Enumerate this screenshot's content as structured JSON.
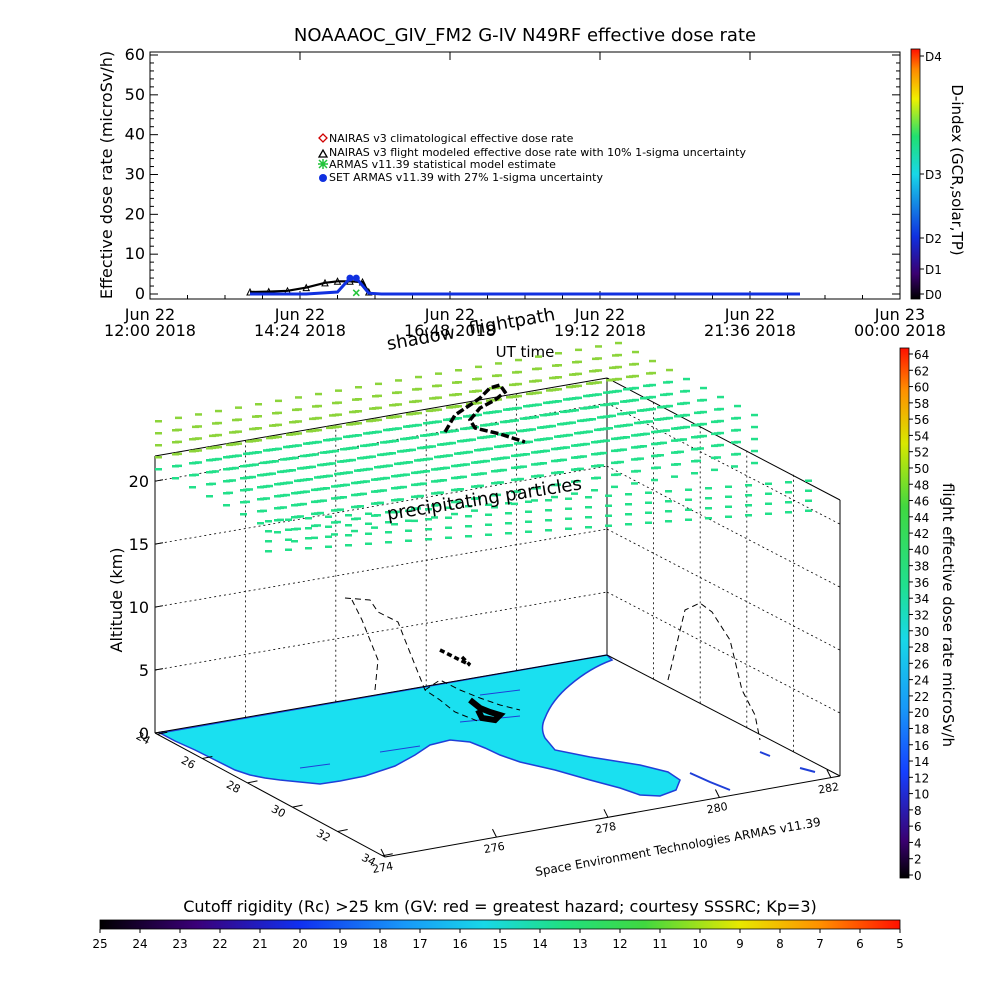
{
  "chart_data": [
    {
      "type": "line",
      "title": "NOAAAOC_GIV_FM2 G-IV   N49RF  effective dose rate",
      "ylabel": "Effective dose rate (microSv/h)",
      "xlabel": "UT time",
      "ylim": [
        0,
        60
      ],
      "y_ticks": [
        "0",
        "10",
        "20",
        "30",
        "40",
        "50",
        "60"
      ],
      "x_ticks": [
        {
          "line1": "Jun 22",
          "line2": "12:00 2018",
          "hours": 0
        },
        {
          "line1": "Jun 22",
          "line2": "14:24 2018",
          "hours": 2.4
        },
        {
          "line1": "Jun 22",
          "line2": "16:48 2018",
          "hours": 4.8
        },
        {
          "line1": "Jun 22",
          "line2": "19:12 2018",
          "hours": 7.2
        },
        {
          "line1": "Jun 22",
          "line2": "21:36 2018",
          "hours": 9.6
        },
        {
          "line1": "Jun 23",
          "line2": "00:00 2018",
          "hours": 12.0
        }
      ],
      "legend": [
        {
          "label": "NAIRAS v3 climatological effective dose rate",
          "color": "#d00000",
          "marker": "diamond"
        },
        {
          "label": "NAIRAS v3 flight modeled effective dose rate with 10% 1-sigma uncertainty",
          "color": "#000000",
          "marker": "triangle"
        },
        {
          "label": "ARMAS v11.39 statistical model estimate",
          "color": "#22c43a",
          "marker": "asterisk"
        },
        {
          "label": "SET ARMAS v11.39 with 27% 1-sigma uncertainty",
          "color": "#1030e0",
          "marker": "circle"
        }
      ],
      "series": [
        {
          "name": "NAIRAS v3 flight modeled effective dose rate with 10% 1-sigma uncertainty",
          "x_hours": [
            1.6,
            1.9,
            2.2,
            2.5,
            2.8,
            3.0,
            3.2,
            3.4,
            3.5
          ],
          "values": [
            0.5,
            0.6,
            0.8,
            1.6,
            2.8,
            3.2,
            3.2,
            3.0,
            0.5
          ]
        },
        {
          "name": "SET ARMAS v11.39 with 27% 1-sigma uncertainty",
          "x_hours": [
            1.6,
            2.0,
            2.5,
            3.0,
            3.2,
            3.3,
            3.5,
            3.7,
            4.0,
            5.0,
            6.0,
            7.0,
            8.0,
            9.0,
            10.0,
            10.4
          ],
          "values": [
            0,
            0,
            0,
            0.5,
            4.0,
            4.0,
            0.2,
            0,
            0,
            0,
            0,
            0,
            0,
            0,
            0,
            0
          ]
        },
        {
          "name": "ARMAS v11.39 statistical model estimate",
          "x_hours": [
            3.3
          ],
          "values": [
            0.3
          ]
        }
      ],
      "dindex_colorbar": {
        "title": "D-index (GCR,solar,TP)",
        "labels": [
          "D0",
          "D1",
          "D2",
          "D3",
          "D4"
        ]
      }
    },
    {
      "type": "scatter",
      "subtype": "3d-flightpath",
      "zlabel": "Altitude (km)",
      "z_ticks": [
        "0",
        "5",
        "10",
        "15",
        "20"
      ],
      "zlim": [
        0,
        22
      ],
      "lat_ticks": [
        "24",
        "26",
        "28",
        "30",
        "32",
        "34"
      ],
      "lon_ticks": [
        "274",
        "276",
        "278",
        "280",
        "282"
      ],
      "annotations": [
        "shadow",
        "flightpath",
        "precipitating particles"
      ],
      "credit": "Space Environment Technologies ARMAS v11.39",
      "dose_colorbar": {
        "title": "flight effective dose rate microSv/h",
        "labels": [
          "0",
          "2",
          "4",
          "6",
          "8",
          "10",
          "12",
          "14",
          "16",
          "18",
          "20",
          "22",
          "24",
          "26",
          "28",
          "30",
          "32",
          "34",
          "36",
          "38",
          "40",
          "42",
          "44",
          "46",
          "48",
          "50",
          "52",
          "54",
          "56",
          "58",
          "60",
          "62",
          "64"
        ]
      },
      "rc_colorbar": {
        "title": "Cutoff rigidity (Rc) >25 km (GV: red = greatest hazard; courtesy SSSRC; Kp=3)",
        "labels": [
          "25",
          "24",
          "23",
          "22",
          "21",
          "20",
          "19",
          "18",
          "17",
          "16",
          "15",
          "14",
          "13",
          "12",
          "11",
          "10",
          "9",
          "8",
          "7",
          "6",
          "5"
        ]
      }
    }
  ],
  "colors": {
    "land": "#1ae0f0",
    "coast": "#1f3fd8",
    "particle_high": "#8cd43a",
    "particle_low": "#22e08a"
  }
}
